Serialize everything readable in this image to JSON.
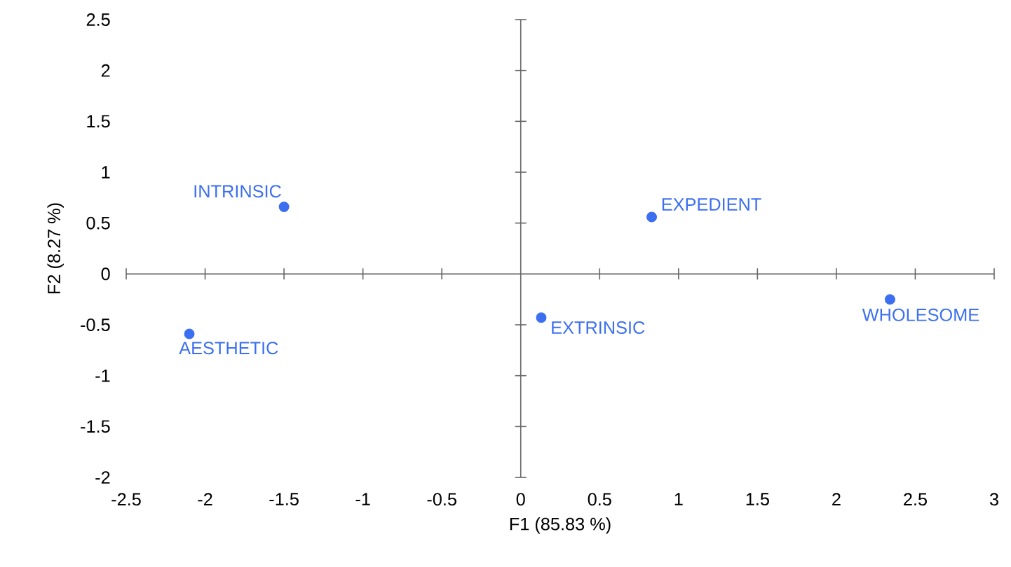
{
  "chart_data": {
    "type": "scatter",
    "xlabel": "F1 (85.83 %)",
    "ylabel": "F2 (8.27 %)",
    "x": [
      -1.5,
      -2.1,
      0.13,
      0.83,
      2.34
    ],
    "series": [
      {
        "color": "#3c6ff0",
        "values": [
          0.66,
          -0.59,
          -0.43,
          0.56,
          -0.25
        ]
      }
    ],
    "marker": "circle",
    "xlim": [
      -2.5,
      3
    ],
    "ylim": [
      -2,
      2.5
    ],
    "xticks": [
      -2.5,
      -2,
      -1.5,
      -1,
      -0.5,
      0,
      0.5,
      1,
      1.5,
      2,
      2.5,
      3
    ],
    "yticks": [
      -2,
      -1.5,
      -1,
      -0.5,
      0,
      0.5,
      1,
      1.5,
      2,
      2.5
    ],
    "annotations": [
      {
        "text": "INTRINSIC",
        "x": -1.5,
        "y": 0.66
      },
      {
        "text": "AESTHETIC",
        "x": -2.1,
        "y": -0.59
      },
      {
        "text": "EXTRINSIC",
        "x": 0.13,
        "y": -0.43
      },
      {
        "text": "EXPEDIENT",
        "x": 0.83,
        "y": 0.56
      },
      {
        "text": "WHOLESOME",
        "x": 2.34,
        "y": -0.25
      }
    ]
  }
}
